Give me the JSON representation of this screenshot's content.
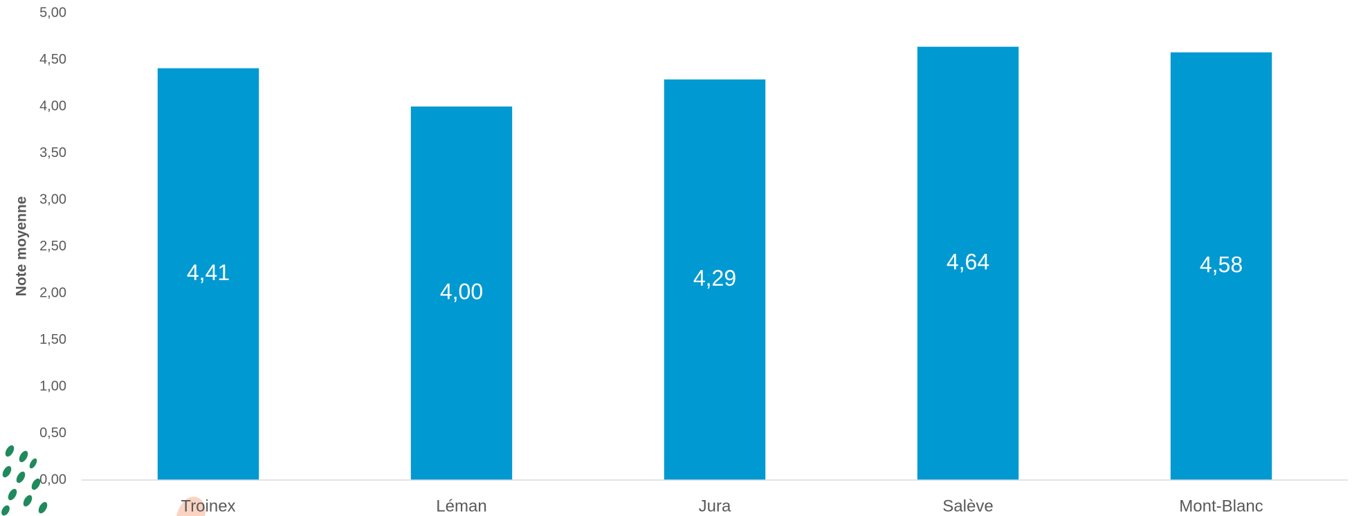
{
  "chart_data": {
    "type": "bar",
    "y_axis_label": "Note moyenne",
    "categories": [
      "Troinex",
      "Léman",
      "Jura",
      "Salève",
      "Mont-Blanc"
    ],
    "values": [
      4.41,
      4.0,
      4.29,
      4.64,
      4.58
    ],
    "value_labels": [
      "4,41",
      "4,00",
      "4,29",
      "4,64",
      "4,58"
    ],
    "color": "#0099d1",
    "ylim": [
      0,
      5
    ],
    "yticks": [
      {
        "value": 0,
        "label": "0,00"
      },
      {
        "value": 0.5,
        "label": "0,50"
      },
      {
        "value": 1,
        "label": "1,00"
      },
      {
        "value": 1.5,
        "label": "1,50"
      },
      {
        "value": 2,
        "label": "2,00"
      },
      {
        "value": 2.5,
        "label": "2,50"
      },
      {
        "value": 3,
        "label": "3,00"
      },
      {
        "value": 3.5,
        "label": "3,50"
      },
      {
        "value": 4,
        "label": "4,00"
      },
      {
        "value": 4.5,
        "label": "4,50"
      },
      {
        "value": 5,
        "label": "5,00"
      }
    ],
    "grid": false
  }
}
